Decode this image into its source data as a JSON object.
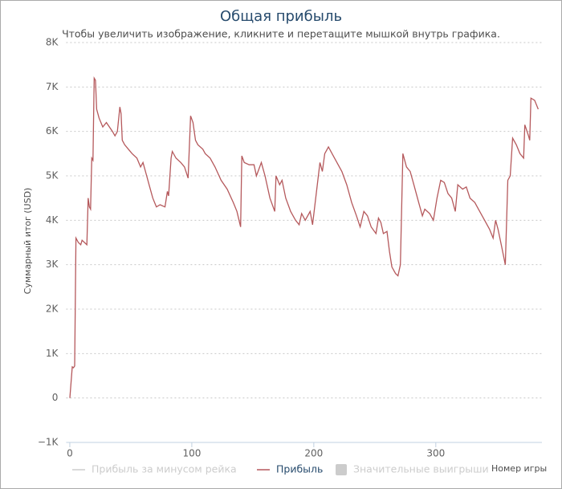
{
  "chart_data": {
    "type": "line",
    "title": "Общая прибыль",
    "subtitle": "Чтобы увеличить изображение, кликните и перетащите мышкой внутрь графика.",
    "x_label": "Номер игры",
    "y_label": "Суммарный итог (USD)",
    "x": [
      0,
      2,
      3,
      4,
      5,
      7,
      9,
      10,
      12,
      14,
      15,
      16,
      17,
      18,
      19,
      20,
      21,
      22,
      24,
      27,
      30,
      35,
      37,
      39,
      41,
      42,
      43,
      45,
      48,
      51,
      55,
      58,
      60,
      63,
      65,
      68,
      71,
      74,
      78,
      80,
      81,
      83,
      84,
      87,
      91,
      94,
      97,
      99,
      101,
      103,
      105,
      109,
      111,
      115,
      119,
      124,
      129,
      134,
      137,
      140,
      141,
      143,
      147,
      151,
      153,
      157,
      160,
      164,
      168,
      169,
      172,
      174,
      177,
      181,
      185,
      188,
      190,
      193,
      197,
      199,
      205,
      207,
      209,
      212,
      215,
      219,
      223,
      227,
      231,
      235,
      238,
      241,
      244,
      247,
      251,
      253,
      255,
      257,
      260,
      262,
      264,
      267,
      269,
      271,
      273,
      276,
      279,
      282,
      286,
      289,
      291,
      295,
      298,
      301,
      304,
      307,
      310,
      313,
      316,
      318,
      322,
      325,
      328,
      332,
      336,
      340,
      344,
      347,
      349,
      351,
      354,
      357,
      359,
      361,
      363,
      366,
      369,
      372,
      373,
      376,
      377,
      378,
      381,
      384
    ],
    "series": [
      {
        "name": "Прибыль",
        "color": "#b5595c",
        "values": [
          0,
          700,
          680,
          720,
          3600,
          3500,
          3450,
          3550,
          3500,
          3450,
          4500,
          4300,
          4250,
          5400,
          5350,
          7200,
          7150,
          6500,
          6300,
          6100,
          6200,
          6000,
          5900,
          6000,
          6550,
          6400,
          5800,
          5700,
          5600,
          5500,
          5400,
          5200,
          5300,
          5000,
          4800,
          4500,
          4300,
          4350,
          4300,
          4650,
          4550,
          5400,
          5550,
          5400,
          5300,
          5200,
          4950,
          6350,
          6200,
          5800,
          5700,
          5600,
          5500,
          5400,
          5200,
          4900,
          4700,
          4400,
          4200,
          3850,
          5450,
          5300,
          5250,
          5250,
          5000,
          5300,
          5000,
          4500,
          4200,
          5000,
          4800,
          4900,
          4500,
          4200,
          4000,
          3900,
          4150,
          4000,
          4200,
          3900,
          5300,
          5100,
          5500,
          5650,
          5500,
          5300,
          5100,
          4800,
          4400,
          4100,
          3850,
          4200,
          4100,
          3850,
          3700,
          4050,
          3950,
          3700,
          3750,
          3300,
          2950,
          2800,
          2750,
          3000,
          5500,
          5200,
          5100,
          4800,
          4400,
          4100,
          4250,
          4150,
          4000,
          4500,
          4900,
          4850,
          4600,
          4500,
          4200,
          4800,
          4700,
          4750,
          4500,
          4400,
          4200,
          4000,
          3800,
          3600,
          4000,
          3800,
          3400,
          3000,
          4900,
          5000,
          5850,
          5700,
          5500,
          5400,
          6150,
          5900,
          5800,
          6750,
          6700,
          6500
        ]
      }
    ],
    "hidden_series": [
      {
        "name": "Прибыль за минусом рейка",
        "color": "#cccccc"
      },
      {
        "name": "Значительные выигрыши",
        "color": "#cccccc"
      }
    ],
    "xlim": [
      -3,
      387
    ],
    "xticks": [
      0,
      100,
      200,
      300
    ],
    "ylim": [
      -1000,
      8000
    ],
    "yticks": [
      {
        "value": -1000,
        "label": "−1K"
      },
      0,
      {
        "value": 1000,
        "label": "1K"
      },
      {
        "value": 2000,
        "label": "2K"
      },
      {
        "value": 3000,
        "label": "3K"
      },
      {
        "value": 4000,
        "label": "4K"
      },
      {
        "value": 5000,
        "label": "5K"
      },
      {
        "value": 6000,
        "label": "6K"
      },
      {
        "value": 7000,
        "label": "7K"
      },
      {
        "value": 8000,
        "label": "8K"
      }
    ],
    "grid": true
  }
}
